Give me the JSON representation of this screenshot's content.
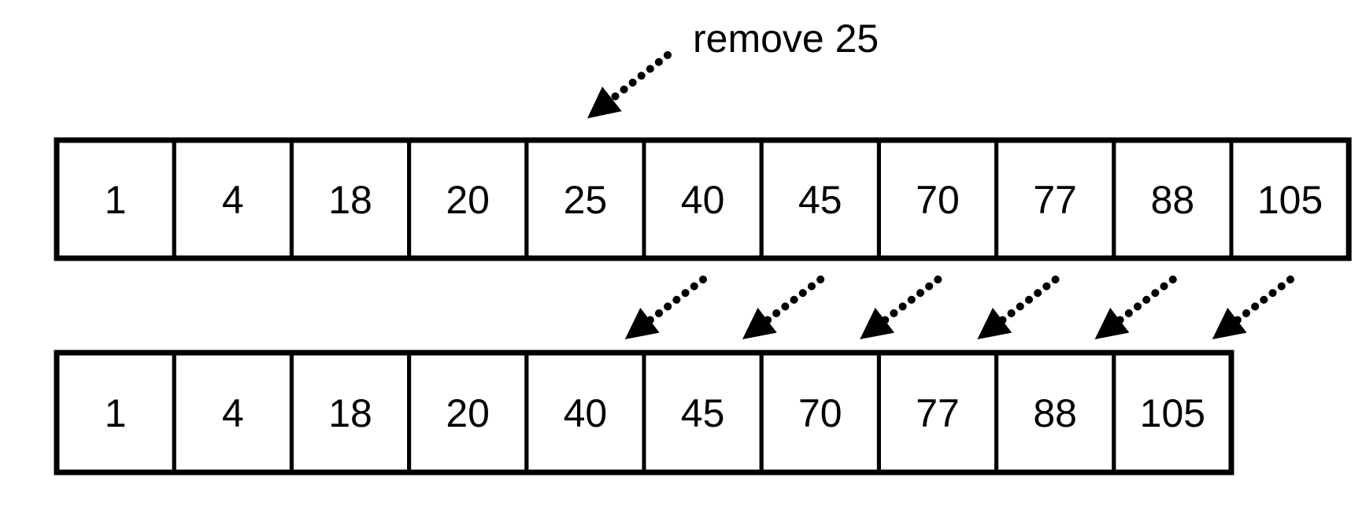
{
  "annotation": {
    "label": "remove 25"
  },
  "arrays": [
    {
      "id": "before",
      "values": [
        "1",
        "4",
        "18",
        "20",
        "25",
        "40",
        "45",
        "70",
        "77",
        "88",
        "105"
      ]
    },
    {
      "id": "after",
      "values": [
        "1",
        "4",
        "18",
        "20",
        "40",
        "45",
        "70",
        "77",
        "88",
        "105"
      ]
    }
  ],
  "shift_arrows": {
    "from_index": 5,
    "count": 6
  },
  "colors": {
    "stroke": "#000000",
    "cell_fill": "#ffffff"
  }
}
